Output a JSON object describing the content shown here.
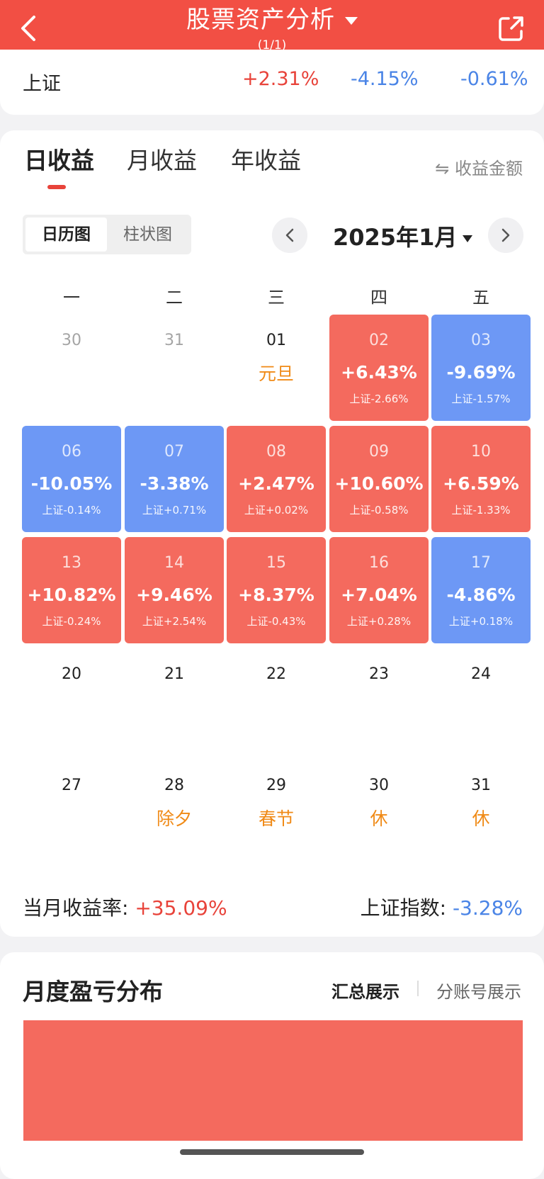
{
  "header": {
    "title": "股票资产分析",
    "subtitle": "(1/1)",
    "bg_color": "#f24f44"
  },
  "index_row": {
    "name": "上证",
    "values": [
      "+2.31%",
      "-4.15%",
      "-0.61%"
    ]
  },
  "tabs": [
    "日收益",
    "月收益",
    "年收益"
  ],
  "amount_toggle": "⇋ 收益金额",
  "view_switch": {
    "active": "日历图",
    "inactive": "柱状图"
  },
  "month_label": "2025年1月",
  "weekdays": [
    "一",
    "二",
    "三",
    "四",
    "五"
  ],
  "calendar": [
    {
      "day": "30",
      "style": "dim"
    },
    {
      "day": "31",
      "style": "dim"
    },
    {
      "day": "01",
      "holiday": "元旦"
    },
    {
      "day": "02",
      "pct": "+6.43%",
      "idx": "上证-2.66%",
      "dir": "up"
    },
    {
      "day": "03",
      "pct": "-9.69%",
      "idx": "上证-1.57%",
      "dir": "down"
    },
    {
      "day": "06",
      "pct": "-10.05%",
      "idx": "上证-0.14%",
      "dir": "down"
    },
    {
      "day": "07",
      "pct": "-3.38%",
      "idx": "上证+0.71%",
      "dir": "down"
    },
    {
      "day": "08",
      "pct": "+2.47%",
      "idx": "上证+0.02%",
      "dir": "up"
    },
    {
      "day": "09",
      "pct": "+10.60%",
      "idx": "上证-0.58%",
      "dir": "up"
    },
    {
      "day": "10",
      "pct": "+6.59%",
      "idx": "上证-1.33%",
      "dir": "up"
    },
    {
      "day": "13",
      "pct": "+10.82%",
      "idx": "上证-0.24%",
      "dir": "up"
    },
    {
      "day": "14",
      "pct": "+9.46%",
      "idx": "上证+2.54%",
      "dir": "up"
    },
    {
      "day": "15",
      "pct": "+8.37%",
      "idx": "上证-0.43%",
      "dir": "up"
    },
    {
      "day": "16",
      "pct": "+7.04%",
      "idx": "上证+0.28%",
      "dir": "up"
    },
    {
      "day": "17",
      "pct": "-4.86%",
      "idx": "上证+0.18%",
      "dir": "down"
    },
    {
      "day": "20"
    },
    {
      "day": "21"
    },
    {
      "day": "22"
    },
    {
      "day": "23"
    },
    {
      "day": "24"
    },
    {
      "day": "27"
    },
    {
      "day": "28",
      "holiday": "除夕"
    },
    {
      "day": "29",
      "holiday": "春节"
    },
    {
      "day": "30",
      "holiday": "休"
    },
    {
      "day": "31",
      "holiday": "休"
    }
  ],
  "summary": {
    "month_label": "当月收益率:",
    "month_value": "+35.09%",
    "index_label": "上证指数:",
    "index_value": "-3.28%"
  },
  "distribution": {
    "title": "月度盈亏分布",
    "option_agg": "汇总展示",
    "option_acct": "分账号展示"
  },
  "colors": {
    "up": "#f46a5e",
    "down": "#6d98f5",
    "holiday": "#f08a16"
  }
}
